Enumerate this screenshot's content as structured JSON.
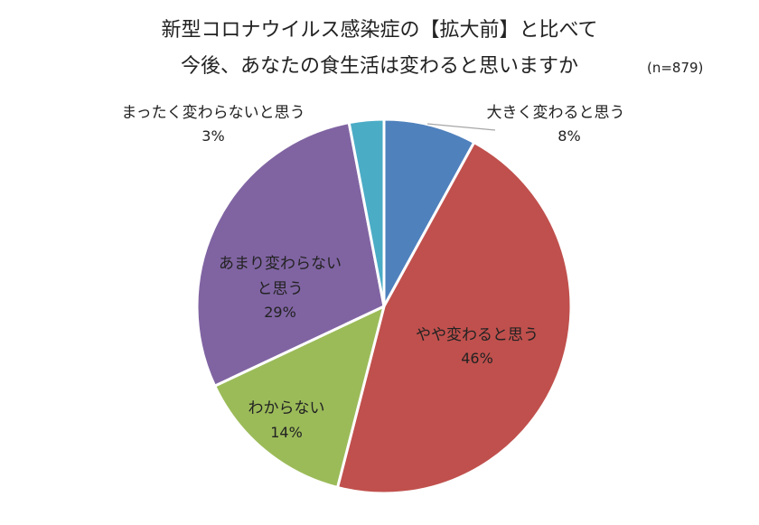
{
  "chart_data": {
    "type": "pie",
    "title_line1": "新型コロナウイルス感染症の【拡大前】と比べて",
    "title_line2": "今後、あなたの食生活は変わると思いますか",
    "sample_note": "(n=879)",
    "slices": [
      {
        "label": "大きく変わると思う",
        "pct_label": "8%",
        "value": 8,
        "color": "#4f81bd"
      },
      {
        "label": "やや変わると思う",
        "pct_label": "46%",
        "value": 46,
        "color": "#c0504d"
      },
      {
        "label": "わからない",
        "pct_label": "14%",
        "value": 14,
        "color": "#9bbb59"
      },
      {
        "label_line1": "あまり変わらない",
        "label_line2": "と思う",
        "pct_label": "29%",
        "value": 29,
        "color": "#8064a2"
      },
      {
        "label": "まったく変わらないと思う",
        "pct_label": "3%",
        "value": 3,
        "color": "#4bacc6"
      }
    ]
  }
}
